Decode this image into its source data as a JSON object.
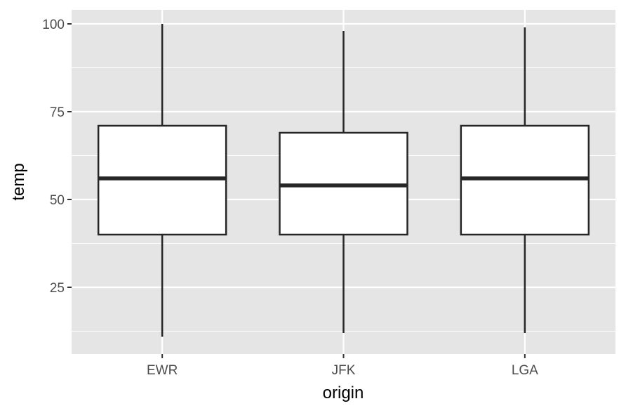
{
  "chart_data": {
    "type": "boxplot",
    "title": "",
    "xlabel": "origin",
    "ylabel": "temp",
    "categories": [
      "EWR",
      "JFK",
      "LGA"
    ],
    "boxes": [
      {
        "category": "EWR",
        "whisker_low": 10.9,
        "q1": 40,
        "median": 56,
        "q3": 71,
        "whisker_high": 100
      },
      {
        "category": "JFK",
        "whisker_low": 12.0,
        "q1": 40,
        "median": 54,
        "q3": 69,
        "whisker_high": 98
      },
      {
        "category": "LGA",
        "whisker_low": 12.0,
        "q1": 40,
        "median": 56,
        "q3": 71,
        "whisker_high": 99
      }
    ],
    "ylim": [
      6,
      104
    ],
    "yticks": [
      25,
      50,
      75,
      100
    ],
    "ytick_labels": [
      "25",
      "50",
      "75",
      "100"
    ],
    "grid": true,
    "legend": "none",
    "colors": {
      "panel_background": "#e5e5e5",
      "grid_line": "#ffffff",
      "box_fill": "#ffffff",
      "box_stroke": "#262626",
      "tick_text": "#4d4d4d",
      "tick_mark": "#333333",
      "axis_title": "#000000"
    }
  }
}
